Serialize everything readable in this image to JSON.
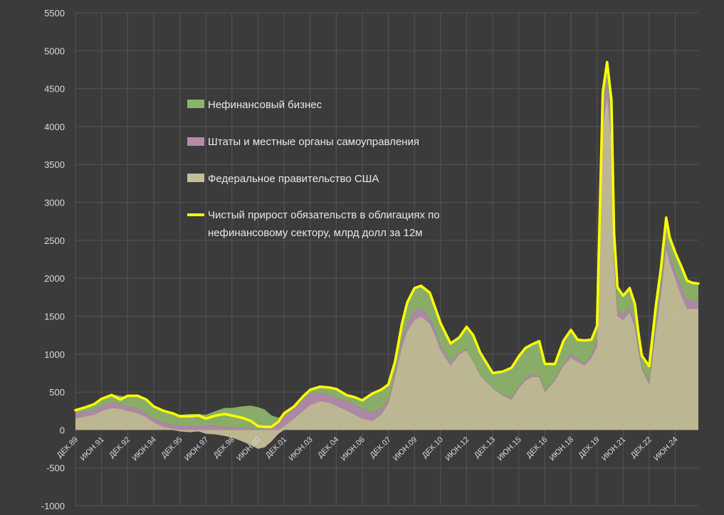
{
  "chart_data": {
    "type": "area",
    "ylim": [
      -1000,
      5500
    ],
    "yticks": [
      -1000,
      -500,
      0,
      500,
      1000,
      1500,
      2000,
      2500,
      3000,
      3500,
      4000,
      4500,
      5000,
      5500
    ],
    "ytick_labels": [
      "-1000",
      "-500",
      "0",
      "500",
      "1000",
      "1500",
      "2000",
      "2500",
      "3000",
      "3500",
      "4000",
      "4500",
      "5000",
      "5500"
    ],
    "xlim": [
      1989.92,
      2025.75
    ],
    "x_tick_labels": [
      {
        "x": 1989.92,
        "label": "ДЕК.89"
      },
      {
        "x": 1991.42,
        "label": "ИЮН.91"
      },
      {
        "x": 1992.92,
        "label": "ДЕК.92"
      },
      {
        "x": 1994.42,
        "label": "ИЮН.94"
      },
      {
        "x": 1995.92,
        "label": "ДЕК.95"
      },
      {
        "x": 1997.42,
        "label": "ИЮН.97"
      },
      {
        "x": 1998.92,
        "label": "ДЕК.98"
      },
      {
        "x": 2000.42,
        "label": "ИЮН.00"
      },
      {
        "x": 2001.92,
        "label": "ДЕК.01"
      },
      {
        "x": 2003.42,
        "label": "ИЮН.03"
      },
      {
        "x": 2004.92,
        "label": "ДЕК.04"
      },
      {
        "x": 2006.42,
        "label": "ИЮН.06"
      },
      {
        "x": 2007.92,
        "label": "ДЕК.07"
      },
      {
        "x": 2009.42,
        "label": "ИЮН.09"
      },
      {
        "x": 2010.92,
        "label": "ДЕК.10"
      },
      {
        "x": 2012.42,
        "label": "ИЮН.12"
      },
      {
        "x": 2013.92,
        "label": "ДЕК.13"
      },
      {
        "x": 2015.42,
        "label": "ИЮН.15"
      },
      {
        "x": 2016.92,
        "label": "ДЕК.16"
      },
      {
        "x": 2018.42,
        "label": "ИЮН.18"
      },
      {
        "x": 2019.92,
        "label": "ДЕК.19"
      },
      {
        "x": 2021.42,
        "label": "ИЮН.21"
      },
      {
        "x": 2022.92,
        "label": "ДЕК.22"
      },
      {
        "x": 2024.42,
        "label": "ИЮН.24"
      }
    ],
    "x": [
      1989.92,
      1990.5,
      1991.0,
      1991.42,
      1992.0,
      1992.5,
      1992.92,
      1993.5,
      1994.0,
      1994.42,
      1995.0,
      1995.5,
      1995.92,
      1996.5,
      1997.0,
      1997.42,
      1998.0,
      1998.5,
      1998.92,
      1999.5,
      2000.0,
      2000.42,
      2000.8,
      2001.2,
      2001.6,
      2001.92,
      2002.5,
      2003.0,
      2003.42,
      2004.0,
      2004.5,
      2004.92,
      2005.5,
      2006.0,
      2006.42,
      2007.0,
      2007.5,
      2007.92,
      2008.3,
      2008.7,
      2009.0,
      2009.42,
      2009.8,
      2010.3,
      2010.6,
      2010.92,
      2011.5,
      2012.0,
      2012.42,
      2012.8,
      2013.2,
      2013.5,
      2013.92,
      2014.5,
      2015.0,
      2015.42,
      2015.8,
      2016.2,
      2016.6,
      2016.92,
      2017.5,
      2018.0,
      2018.42,
      2018.8,
      2019.2,
      2019.6,
      2019.92,
      2020.25,
      2020.5,
      2020.75,
      2020.9,
      2021.1,
      2021.42,
      2021.8,
      2022.1,
      2022.3,
      2022.5,
      2022.92,
      2023.3,
      2023.6,
      2023.9,
      2024.1,
      2024.42,
      2024.8,
      2025.1,
      2025.4,
      2025.75
    ],
    "series": [
      {
        "name": "Федеральное правительство США",
        "color": "#c4bd97",
        "values": [
          150,
          180,
          200,
          250,
          290,
          280,
          250,
          220,
          170,
          100,
          40,
          20,
          -20,
          -30,
          -20,
          -50,
          -60,
          -80,
          -100,
          -150,
          -200,
          -250,
          -230,
          -150,
          -50,
          50,
          150,
          250,
          330,
          380,
          360,
          320,
          260,
          200,
          150,
          120,
          200,
          350,
          700,
          1100,
          1300,
          1450,
          1500,
          1400,
          1250,
          1050,
          850,
          1000,
          1050,
          900,
          720,
          650,
          550,
          450,
          400,
          550,
          650,
          700,
          700,
          500,
          650,
          850,
          950,
          900,
          850,
          950,
          1100,
          4000,
          4400,
          3800,
          2200,
          1500,
          1450,
          1550,
          1350,
          1050,
          800,
          600,
          1300,
          1800,
          2400,
          2200,
          2000,
          1750,
          1600,
          1600,
          1600
        ]
      },
      {
        "name": "Штаты и местные органы самоуправления",
        "color": "#b48bad",
        "values": [
          70,
          60,
          60,
          60,
          70,
          60,
          60,
          60,
          50,
          50,
          60,
          50,
          60,
          60,
          60,
          60,
          50,
          40,
          40,
          30,
          20,
          10,
          20,
          40,
          80,
          120,
          130,
          140,
          140,
          110,
          100,
          100,
          120,
          130,
          120,
          110,
          80,
          50,
          50,
          80,
          100,
          120,
          100,
          80,
          70,
          60,
          40,
          20,
          10,
          0,
          0,
          10,
          0,
          20,
          20,
          20,
          30,
          30,
          20,
          20,
          20,
          30,
          50,
          40,
          30,
          40,
          70,
          150,
          250,
          150,
          100,
          80,
          70,
          70,
          60,
          40,
          30,
          40,
          80,
          90,
          100,
          90,
          90,
          110,
          120,
          110,
          100
        ]
      },
      {
        "name": "Нефинансовый бизнес",
        "color": "#8db36b",
        "values": [
          40,
          60,
          80,
          100,
          110,
          110,
          120,
          170,
          180,
          160,
          150,
          150,
          140,
          150,
          150,
          140,
          200,
          250,
          250,
          280,
          300,
          290,
          250,
          150,
          80,
          50,
          30,
          50,
          60,
          80,
          100,
          120,
          80,
          100,
          120,
          250,
          250,
          200,
          150,
          220,
          280,
          300,
          300,
          330,
          300,
          300,
          250,
          200,
          300,
          350,
          300,
          250,
          200,
          300,
          400,
          400,
          400,
          400,
          450,
          350,
          200,
          300,
          320,
          250,
          300,
          200,
          200,
          300,
          200,
          400,
          300,
          300,
          250,
          250,
          250,
          200,
          150,
          200,
          250,
          250,
          300,
          250,
          250,
          280,
          250,
          230,
          230
        ]
      }
    ],
    "line": {
      "name": "Чистый прирост обязательств в облигациях по нефинансовому сектору, млрд долл за 12м",
      "color": "#ffff00",
      "values": [
        260,
        300,
        340,
        410,
        460,
        400,
        450,
        450,
        400,
        310,
        250,
        220,
        180,
        180,
        190,
        150,
        190,
        210,
        190,
        160,
        120,
        50,
        40,
        40,
        110,
        220,
        310,
        440,
        530,
        570,
        560,
        540,
        460,
        430,
        390,
        480,
        530,
        600,
        900,
        1400,
        1680,
        1870,
        1900,
        1810,
        1620,
        1410,
        1140,
        1220,
        1360,
        1250,
        1020,
        910,
        750,
        770,
        820,
        970,
        1080,
        1130,
        1170,
        870,
        870,
        1180,
        1320,
        1190,
        1180,
        1190,
        1370,
        4450,
        4850,
        4350,
        2600,
        1880,
        1770,
        1870,
        1660,
        1290,
        980,
        840,
        1630,
        2140,
        2800,
        2540,
        2340,
        2140,
        1970,
        1940,
        1930
      ]
    }
  },
  "legend": {
    "items": [
      {
        "label": "Нефинансовый бизнес",
        "color": "#8db36b",
        "kind": "swatch"
      },
      {
        "label": "Штаты и местные органы самоуправления",
        "color": "#b48bad",
        "kind": "swatch"
      },
      {
        "label": "Федеральное правительство США",
        "color": "#c4bd97",
        "kind": "swatch"
      },
      {
        "label_line1": "Чистый прирост обязательств в облигациях по",
        "label_line2": "нефинансовому сектору, млрд долл за 12м",
        "color": "#ffff00",
        "kind": "line"
      }
    ]
  },
  "colors": {
    "background": "#3b3b3b",
    "gridline": "#555555",
    "tick_text": "#d9d9d9"
  }
}
